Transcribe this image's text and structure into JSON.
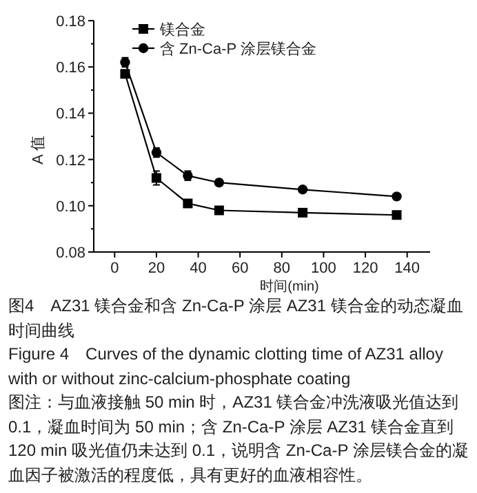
{
  "chart_data": {
    "type": "line",
    "title": "图4　AZ31 镁合金和含 Zn-Ca-P 涂层 AZ31 镁合金的动态凝血时间曲线",
    "subtitle": "Figure 4　Curves of the dynamic clotting time of AZ31 alloy with or without zinc-calcium-phosphate coating",
    "annotations": [
      "图注：与血液接触 50 min 时，AZ31 镁合金冲洗液吸光值达到 0.1，凝血时间为 50 min；含 Zn-Ca-P 涂层 AZ31 镁合金直到 120 min 吸光值仍未达到 0.1，说明含 Zn-Ca-P 涂层镁合金的凝血因子被激活的程度低，具有更好的血液相容性。"
    ],
    "xlabel": "时间(min)",
    "ylabel": "A 值",
    "x": [
      5,
      20,
      35,
      50,
      90,
      135
    ],
    "series": [
      {
        "name": "镁合金",
        "color": "#000000",
        "marker": "square",
        "values": [
          0.157,
          0.112,
          0.101,
          0.098,
          0.097,
          0.096
        ],
        "errors": [
          null,
          0.003,
          null,
          null,
          null,
          null
        ]
      },
      {
        "name": "含 Zn-Ca-P 涂层镁合金",
        "color": "#000000",
        "marker": "circle",
        "values": [
          0.162,
          0.123,
          0.113,
          0.11,
          0.107,
          0.104
        ],
        "errors": [
          0.002,
          0.002,
          0.002,
          null,
          null,
          null
        ]
      }
    ],
    "xlim": [
      -10,
      151
    ],
    "ylim": [
      0.08,
      0.18
    ],
    "xticks": [
      0,
      20,
      40,
      60,
      80,
      100,
      120,
      140
    ],
    "yticks": [
      0.08,
      {
        "value": 0.09,
        "label": null
      },
      {
        "value": 0.1,
        "label": "0.10"
      },
      {
        "value": 0.11,
        "label": null
      },
      0.12,
      {
        "value": 0.13,
        "label": null
      },
      0.14,
      {
        "value": 0.15,
        "label": null
      },
      0.16,
      {
        "value": 0.17,
        "label": null
      },
      0.18
    ],
    "legend": "top left"
  }
}
